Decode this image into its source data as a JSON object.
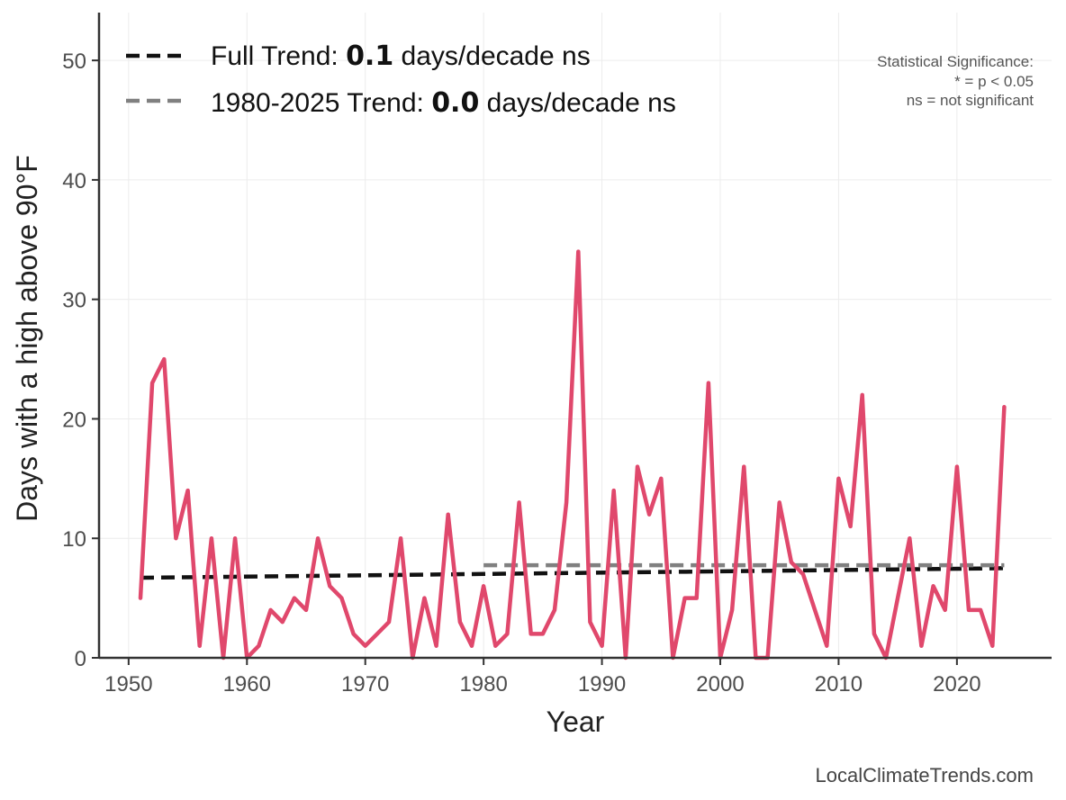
{
  "chart_data": {
    "type": "line",
    "ylabel": "Days with a high above 90°F",
    "xlabel": "Year",
    "xlim": [
      1947.5,
      2028
    ],
    "ylim": [
      0,
      54
    ],
    "grid": true,
    "x_ticks": [
      1950,
      1960,
      1970,
      1980,
      1990,
      2000,
      2010,
      2020
    ],
    "y_ticks": [
      0,
      10,
      20,
      30,
      40,
      50
    ],
    "series": [
      {
        "color": "#e0486c",
        "x": [
          1951,
          1952,
          1953,
          1954,
          1955,
          1956,
          1957,
          1958,
          1959,
          1960,
          1961,
          1962,
          1963,
          1964,
          1965,
          1966,
          1967,
          1968,
          1969,
          1970,
          1971,
          1972,
          1973,
          1974,
          1975,
          1976,
          1977,
          1978,
          1979,
          1980,
          1981,
          1982,
          1983,
          1984,
          1985,
          1986,
          1987,
          1988,
          1989,
          1990,
          1991,
          1992,
          1993,
          1994,
          1995,
          1996,
          1997,
          1998,
          1999,
          2000,
          2001,
          2002,
          2003,
          2004,
          2005,
          2006,
          2007,
          2008,
          2009,
          2010,
          2011,
          2012,
          2013,
          2014,
          2015,
          2016,
          2017,
          2018,
          2019,
          2020,
          2021,
          2022,
          2023,
          2024
        ],
        "values": [
          5,
          23,
          25,
          10,
          14,
          1,
          10,
          0,
          10,
          0,
          1,
          4,
          3,
          5,
          4,
          10,
          6,
          5,
          2,
          1,
          2,
          3,
          10,
          0,
          5,
          1,
          12,
          3,
          1,
          6,
          1,
          2,
          13,
          2,
          2,
          4,
          13,
          34,
          3,
          1,
          14,
          0,
          16,
          12,
          15,
          0,
          5,
          5,
          23,
          0,
          4,
          16,
          0,
          0,
          13,
          8,
          7,
          4,
          1,
          15,
          11,
          22,
          2,
          0,
          5,
          10,
          1,
          6,
          4,
          16,
          4,
          4,
          1,
          21
        ]
      }
    ],
    "trend_lines": [
      {
        "name": "Full Trend",
        "value": "0.1",
        "unit": "days/decade",
        "sig": "ns",
        "color": "#111111",
        "x": [
          1951,
          2024
        ],
        "y": [
          6.7,
          7.5
        ]
      },
      {
        "name": "1980-2025 Trend",
        "value": "0.0",
        "unit": "days/decade",
        "sig": "ns",
        "color": "#808080",
        "x": [
          1980,
          2024
        ],
        "y": [
          7.75,
          7.75
        ]
      }
    ],
    "legend_position": "top-left",
    "significance_note": [
      "Statistical Significance:",
      "* = p < 0.05",
      "ns = not significant"
    ]
  },
  "legend": {
    "full_prefix": "Full Trend: ",
    "full_value": "0.1",
    "full_suffix": " days/decade ns",
    "recent_prefix": "1980-2025 Trend: ",
    "recent_value": "0.0",
    "recent_suffix": " days/decade ns"
  },
  "credit": "LocalClimateTrends.com"
}
